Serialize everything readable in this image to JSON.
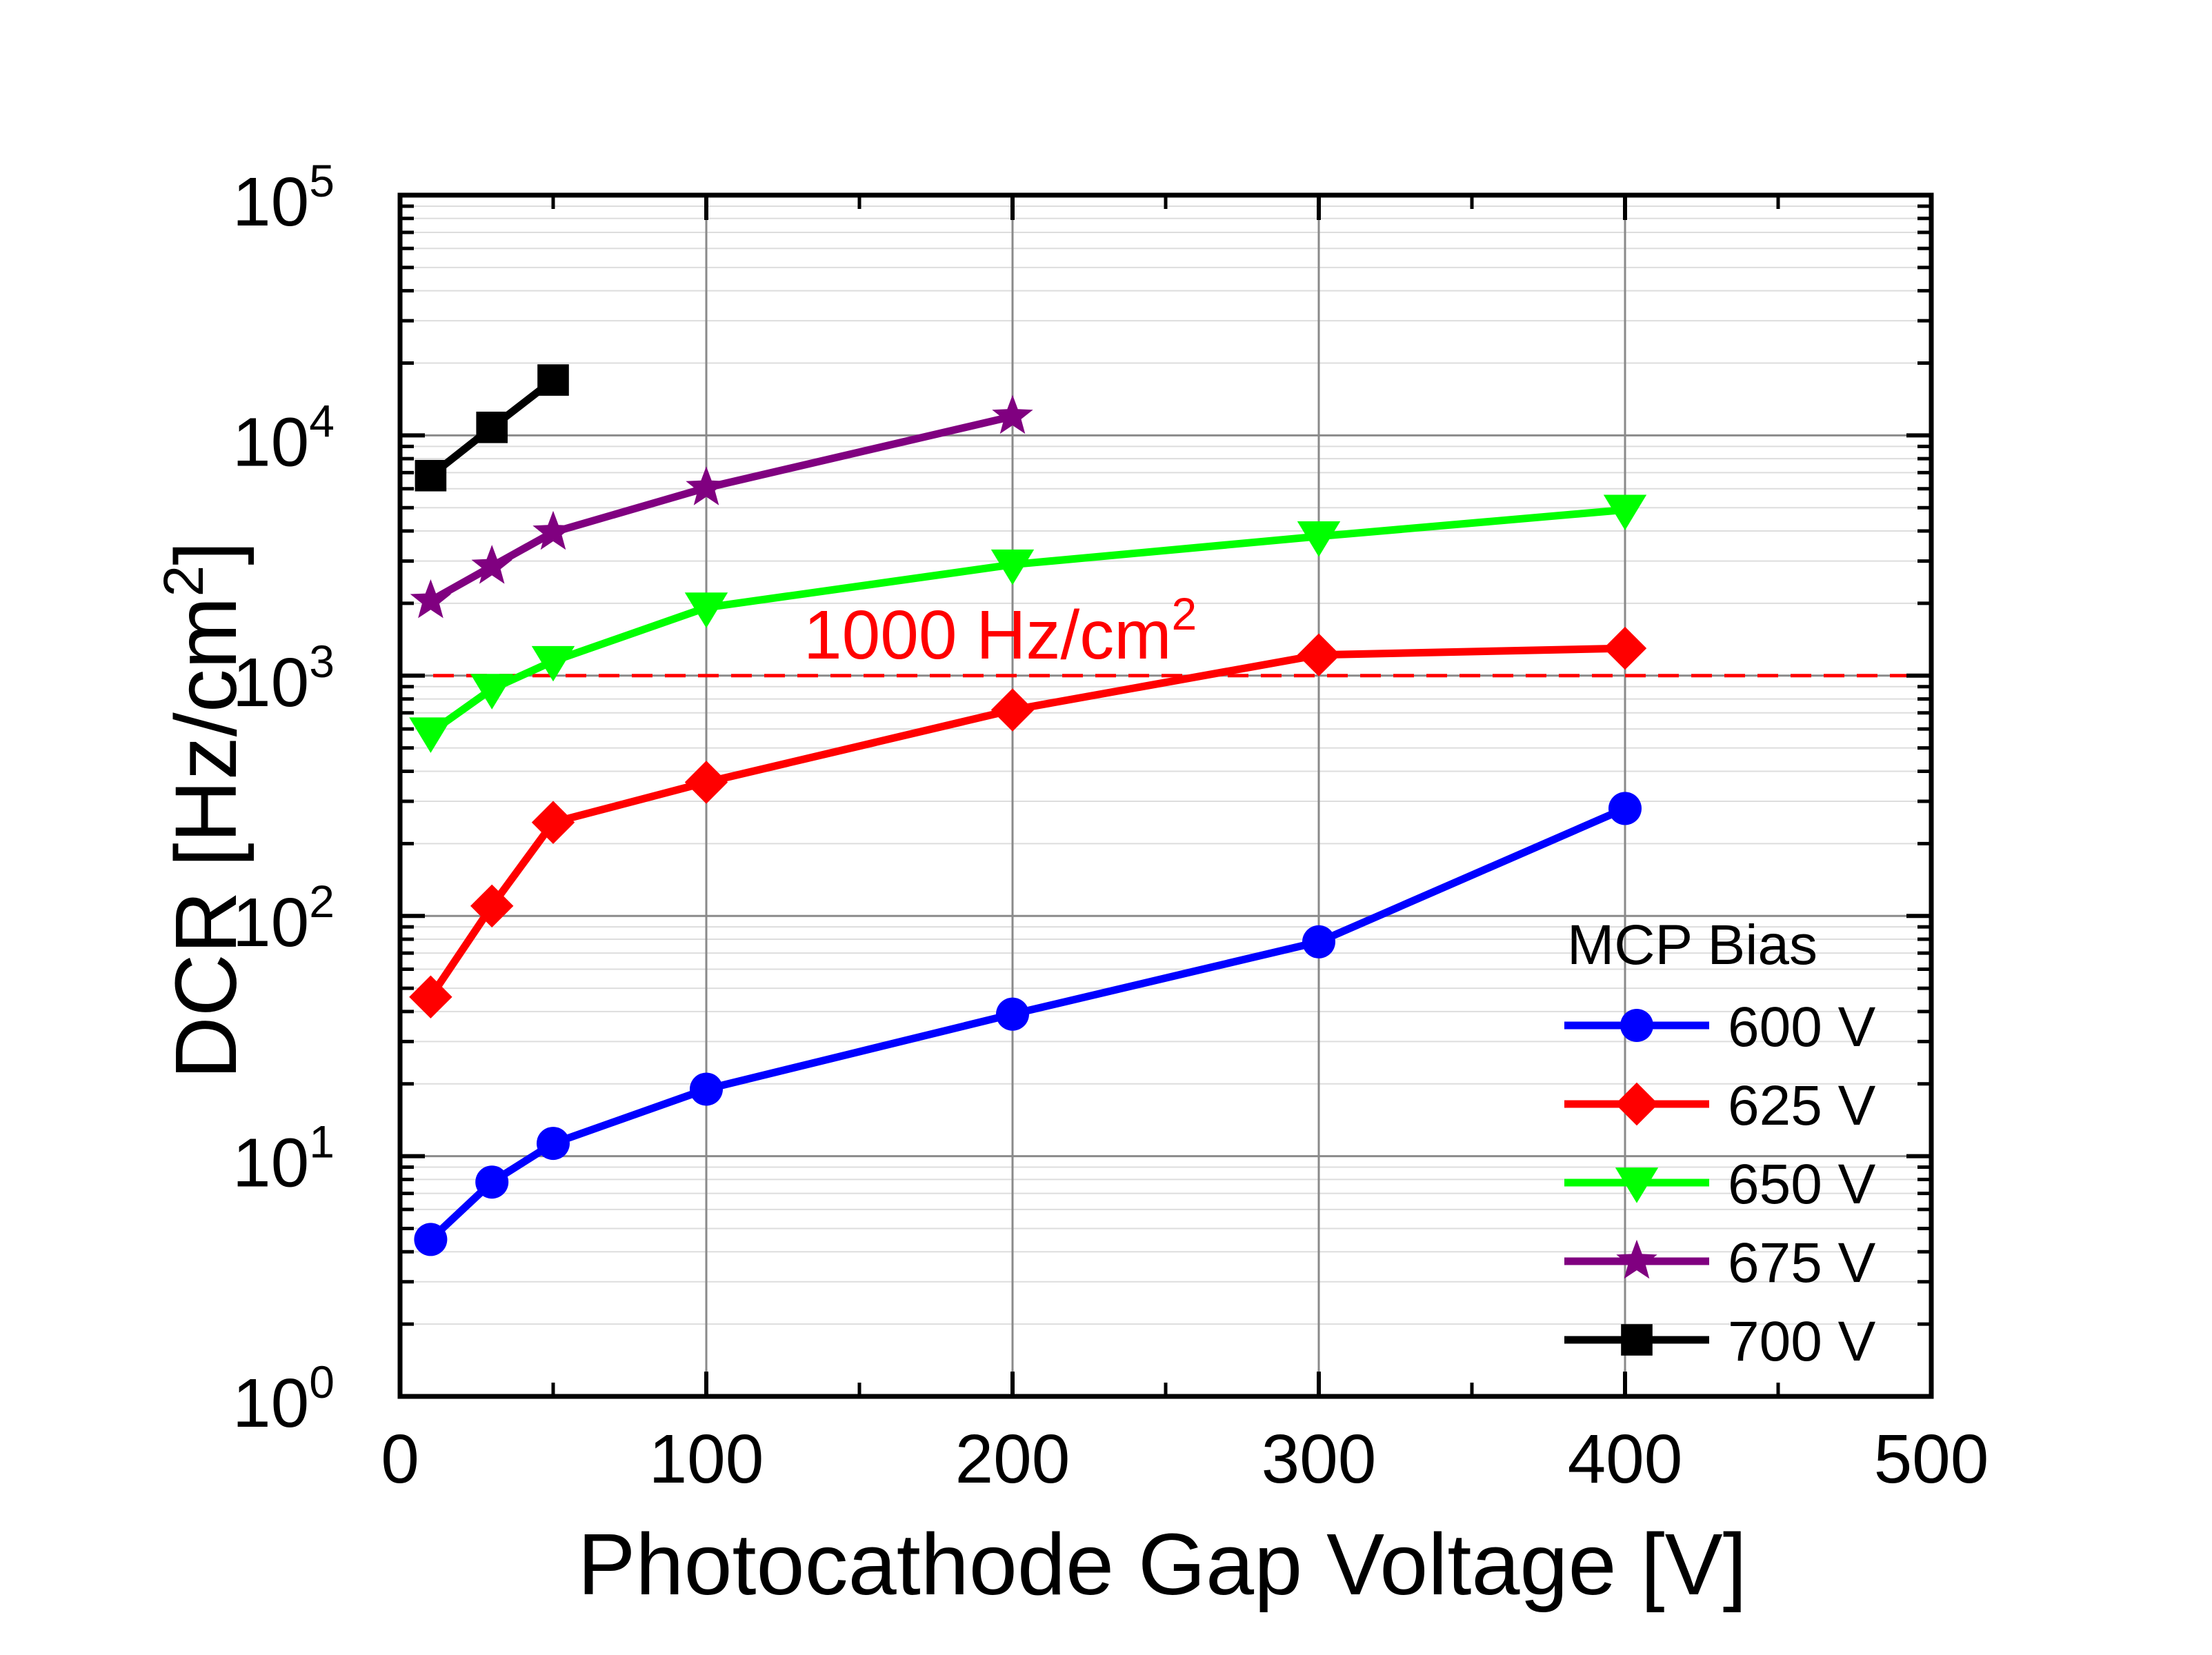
{
  "chart_data": {
    "type": "line",
    "title": "",
    "xlabel": "Photocathode Gap Voltage [V]",
    "ylabel": {
      "base": "DCR [Hz/cm",
      "sup": "2",
      "end": "]"
    },
    "xlim": [
      0,
      500
    ],
    "ylim": [
      1,
      100000
    ],
    "yscale": "log",
    "grid": true,
    "x_ticks": [
      0,
      100,
      200,
      300,
      400,
      500
    ],
    "x_tick_labels": [
      "0",
      "100",
      "200",
      "300",
      "400",
      "500"
    ],
    "y_ticks": [
      {
        "value": 1,
        "base": "10",
        "exp": "0"
      },
      {
        "value": 10,
        "base": "10",
        "exp": "1"
      },
      {
        "value": 100,
        "base": "10",
        "exp": "2"
      },
      {
        "value": 1000,
        "base": "10",
        "exp": "3"
      },
      {
        "value": 10000,
        "base": "10",
        "exp": "4"
      },
      {
        "value": 100000,
        "base": "10",
        "exp": "5"
      }
    ],
    "legend": {
      "title": "MCP Bias",
      "position": "bottom-right"
    },
    "reference_line": {
      "y": 1000,
      "label": "1000 Hz/cm",
      "label_sup": "2",
      "color": "#ff0000",
      "style": "dashed"
    },
    "series": [
      {
        "name": "600 V",
        "color": "#0000ff",
        "marker": "circle",
        "x": [
          10,
          30,
          50,
          100,
          200,
          300,
          400
        ],
        "y": [
          4.5,
          7.8,
          11.3,
          19,
          39,
          78,
          280
        ]
      },
      {
        "name": "625 V",
        "color": "#ff0000",
        "marker": "diamond",
        "x": [
          10,
          30,
          50,
          100,
          200,
          300,
          400
        ],
        "y": [
          46,
          110,
          245,
          360,
          720,
          1220,
          1300
        ]
      },
      {
        "name": "650 V",
        "color": "#00ff00",
        "marker": "triangle-down",
        "x": [
          10,
          30,
          50,
          100,
          200,
          300,
          400
        ],
        "y": [
          580,
          880,
          1150,
          1920,
          2900,
          3800,
          4900
        ]
      },
      {
        "name": "675 V",
        "color": "#800080",
        "marker": "star",
        "x": [
          10,
          30,
          50,
          100,
          200
        ],
        "y": [
          2050,
          2850,
          3950,
          6050,
          12000
        ]
      },
      {
        "name": "700 V",
        "color": "#000000",
        "marker": "square",
        "x": [
          10,
          30,
          50
        ],
        "y": [
          6800,
          10800,
          17000
        ]
      }
    ]
  }
}
